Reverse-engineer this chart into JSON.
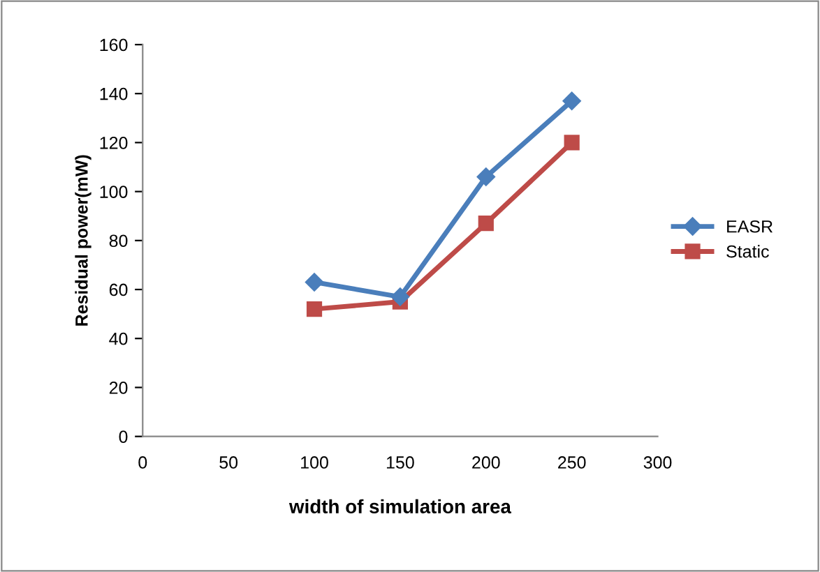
{
  "chart_data": {
    "type": "line",
    "xlabel": "width of simulation area",
    "ylabel": "Residual power(mW)",
    "x": [
      100,
      150,
      200,
      250
    ],
    "series": [
      {
        "name": "EASR",
        "color": "#4a7ebb",
        "values": [
          63,
          57,
          106,
          137
        ],
        "marker": "diamond"
      },
      {
        "name": "Static",
        "color": "#be4b48",
        "values": [
          52,
          55,
          87,
          120
        ],
        "marker": "square"
      }
    ],
    "xlim": [
      0,
      300
    ],
    "xticks": [
      0,
      50,
      100,
      150,
      200,
      250,
      300
    ],
    "ylim": [
      0,
      160
    ],
    "yticks": [
      0,
      20,
      40,
      60,
      80,
      100,
      120,
      140,
      160
    ],
    "grid": false,
    "legend": "right",
    "line_style": "solid"
  }
}
